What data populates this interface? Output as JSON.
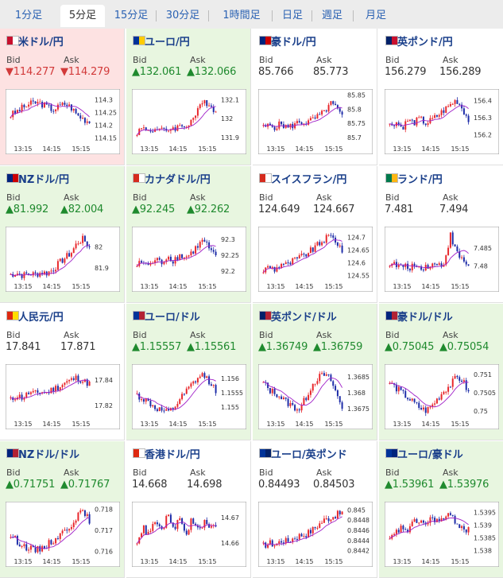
{
  "tabs": [
    {
      "label": "1分足",
      "active": false
    },
    {
      "label": "5分足",
      "active": true
    },
    {
      "label": "15分足",
      "active": false
    },
    {
      "label": "30分足",
      "active": false
    },
    {
      "label": "1時間足",
      "active": false
    },
    {
      "label": "日足",
      "active": false
    },
    {
      "label": "週足",
      "active": false
    },
    {
      "label": "月足",
      "active": false
    }
  ],
  "bid_label": "Bid",
  "ask_label": "Ask",
  "colors": {
    "up": "#1f8a2e",
    "down": "#d23a3a",
    "candle_up": "#e8262b",
    "candle_down": "#1d2ca8",
    "ma": "#a020c8"
  },
  "pairs": [
    {
      "name": "米ドル/円",
      "bid": "114.277",
      "ask": "114.279",
      "dir": "down",
      "bg": "down",
      "chart_data": {
        "type": "candlestick",
        "x_ticks": [
          "13:15",
          "14:15",
          "15:15"
        ],
        "y_ticks": [
          "114.3",
          "114.25",
          "114.2",
          "114.15"
        ],
        "ylim": [
          114.13,
          114.33
        ],
        "trend": [
          0.55,
          0.62,
          0.7,
          0.76,
          0.8,
          0.78,
          0.72,
          0.66,
          0.72,
          0.78,
          0.7,
          0.55,
          0.48,
          0.42
        ]
      }
    },
    {
      "name": "ユーロ/円",
      "bid": "132.061",
      "ask": "132.066",
      "dir": "up",
      "bg": "up",
      "chart_data": {
        "type": "candlestick",
        "x_ticks": [
          "13:15",
          "14:15",
          "15:15"
        ],
        "y_ticks": [
          "132.1",
          "132",
          "131.9"
        ],
        "ylim": [
          131.87,
          132.14
        ],
        "trend": [
          0.22,
          0.3,
          0.25,
          0.28,
          0.24,
          0.26,
          0.3,
          0.32,
          0.34,
          0.45,
          0.62,
          0.82,
          0.78,
          0.6
        ]
      }
    },
    {
      "name": "豪ドル/円",
      "bid": "85.766",
      "ask": "85.773",
      "dir": "none",
      "bg": "none",
      "chart_data": {
        "type": "candlestick",
        "x_ticks": [
          "13:15",
          "14:15",
          "15:15"
        ],
        "y_ticks": [
          "85.85",
          "85.8",
          "85.75",
          "85.7"
        ],
        "ylim": [
          85.68,
          85.86
        ],
        "trend": [
          0.3,
          0.35,
          0.32,
          0.38,
          0.3,
          0.36,
          0.42,
          0.4,
          0.45,
          0.52,
          0.6,
          0.78,
          0.7,
          0.5
        ]
      }
    },
    {
      "name": "英ポンド/円",
      "bid": "156.279",
      "ask": "156.289",
      "dir": "none",
      "bg": "none",
      "chart_data": {
        "type": "candlestick",
        "x_ticks": [
          "13:15",
          "14:15",
          "15:15"
        ],
        "y_ticks": [
          "156.4",
          "156.3",
          "156.2"
        ],
        "ylim": [
          156.15,
          156.45
        ],
        "trend": [
          0.35,
          0.42,
          0.3,
          0.45,
          0.4,
          0.48,
          0.38,
          0.46,
          0.55,
          0.65,
          0.75,
          0.85,
          0.68,
          0.45
        ]
      }
    },
    {
      "name": "NZドル/円",
      "bid": "81.992",
      "ask": "82.004",
      "dir": "up",
      "bg": "up",
      "chart_data": {
        "type": "candlestick",
        "x_ticks": [
          "13:15",
          "14:15",
          "15:15"
        ],
        "y_ticks": [
          "82",
          "81.9"
        ],
        "ylim": [
          81.84,
          82.08
        ],
        "trend": [
          0.12,
          0.15,
          0.1,
          0.14,
          0.12,
          0.16,
          0.15,
          0.22,
          0.35,
          0.45,
          0.55,
          0.75,
          0.82,
          0.65
        ]
      }
    },
    {
      "name": "カナダドル/円",
      "bid": "92.245",
      "ask": "92.262",
      "dir": "up",
      "bg": "up",
      "chart_data": {
        "type": "candlestick",
        "x_ticks": [
          "13:15",
          "14:15",
          "15:15"
        ],
        "y_ticks": [
          "92.3",
          "92.25",
          "92.2"
        ],
        "ylim": [
          92.17,
          92.33
        ],
        "trend": [
          0.3,
          0.38,
          0.28,
          0.42,
          0.35,
          0.48,
          0.4,
          0.5,
          0.45,
          0.55,
          0.68,
          0.8,
          0.6,
          0.45
        ]
      }
    },
    {
      "name": "スイスフラン/円",
      "bid": "124.649",
      "ask": "124.667",
      "dir": "none",
      "bg": "none",
      "chart_data": {
        "type": "candlestick",
        "x_ticks": [
          "13:15",
          "14:15",
          "15:15"
        ],
        "y_ticks": [
          "124.7",
          "124.65",
          "124.6",
          "124.55"
        ],
        "ylim": [
          124.53,
          124.73
        ],
        "trend": [
          0.2,
          0.28,
          0.22,
          0.35,
          0.3,
          0.4,
          0.45,
          0.52,
          0.6,
          0.7,
          0.8,
          0.88,
          0.78,
          0.6
        ]
      }
    },
    {
      "name": "ランド/円",
      "bid": "7.481",
      "ask": "7.494",
      "dir": "none",
      "bg": "none",
      "chart_data": {
        "type": "candlestick",
        "x_ticks": [
          "13:15",
          "14:15",
          "15:15"
        ],
        "y_ticks": [
          "7.485",
          "7.48"
        ],
        "ylim": [
          7.476,
          7.49
        ],
        "trend": [
          0.35,
          0.3,
          0.28,
          0.25,
          0.3,
          0.26,
          0.28,
          0.32,
          0.3,
          0.35,
          0.9,
          0.55,
          0.4,
          0.3
        ]
      }
    },
    {
      "name": "人民元/円",
      "bid": "17.841",
      "ask": "17.871",
      "dir": "none",
      "bg": "none",
      "chart_data": {
        "type": "candlestick",
        "x_ticks": [
          "13:15",
          "14:15",
          "15:15"
        ],
        "y_ticks": [
          "17.84",
          "17.82"
        ],
        "ylim": [
          17.81,
          17.85
        ],
        "trend": [
          0.35,
          0.45,
          0.4,
          0.5,
          0.48,
          0.52,
          0.5,
          0.58,
          0.62,
          0.7,
          0.75,
          0.8,
          0.72,
          0.68
        ]
      }
    },
    {
      "name": "ユーロ/ドル",
      "bid": "1.15557",
      "ask": "1.15561",
      "dir": "up",
      "bg": "up",
      "chart_data": {
        "type": "candlestick",
        "x_ticks": [
          "13:15",
          "14:15",
          "15:15"
        ],
        "y_ticks": [
          "1.156",
          "1.1555",
          "1.155"
        ],
        "ylim": [
          1.1546,
          1.1564
        ],
        "trend": [
          0.45,
          0.38,
          0.3,
          0.2,
          0.15,
          0.1,
          0.18,
          0.35,
          0.5,
          0.65,
          0.78,
          0.85,
          0.72,
          0.55
        ]
      }
    },
    {
      "name": "英ポンド/ドル",
      "bid": "1.36749",
      "ask": "1.36759",
      "dir": "up",
      "bg": "up",
      "chart_data": {
        "type": "candlestick",
        "x_ticks": [
          "13:15",
          "14:15",
          "15:15"
        ],
        "y_ticks": [
          "1.3685",
          "1.368",
          "1.3675"
        ],
        "ylim": [
          1.3672,
          1.3688
        ],
        "trend": [
          0.7,
          0.55,
          0.5,
          0.4,
          0.3,
          0.22,
          0.18,
          0.4,
          0.65,
          0.8,
          0.85,
          0.78,
          0.5,
          0.2
        ]
      }
    },
    {
      "name": "豪ドル/ドル",
      "bid": "0.75045",
      "ask": "0.75054",
      "dir": "up",
      "bg": "up",
      "chart_data": {
        "type": "candlestick",
        "x_ticks": [
          "13:15",
          "14:15",
          "15:15"
        ],
        "y_ticks": [
          "0.751",
          "0.7505",
          "0.75"
        ],
        "ylim": [
          0.7498,
          0.7512
        ],
        "trend": [
          0.7,
          0.6,
          0.5,
          0.4,
          0.3,
          0.2,
          0.15,
          0.25,
          0.4,
          0.55,
          0.65,
          0.8,
          0.75,
          0.5
        ]
      }
    },
    {
      "name": "NZドル/ドル",
      "bid": "0.71751",
      "ask": "0.71767",
      "dir": "up",
      "bg": "up",
      "chart_data": {
        "type": "candlestick",
        "x_ticks": [
          "13:15",
          "14:15",
          "15:15"
        ],
        "y_ticks": [
          "0.718",
          "0.717",
          "0.716"
        ],
        "ylim": [
          0.7158,
          0.7182
        ],
        "trend": [
          0.4,
          0.3,
          0.2,
          0.15,
          0.1,
          0.15,
          0.22,
          0.3,
          0.4,
          0.5,
          0.62,
          0.8,
          0.85,
          0.7
        ]
      }
    },
    {
      "name": "香港ドル/円",
      "bid": "14.668",
      "ask": "14.698",
      "dir": "none",
      "bg": "none",
      "chart_data": {
        "type": "candlestick",
        "x_ticks": [
          "13:15",
          "14:15",
          "15:15"
        ],
        "y_ticks": [
          "14.67",
          "14.66"
        ],
        "ylim": [
          14.655,
          14.675
        ],
        "trend": [
          0.3,
          0.55,
          0.4,
          0.7,
          0.45,
          0.8,
          0.5,
          0.75,
          0.4,
          0.7,
          0.5,
          0.65,
          0.55,
          0.6
        ]
      }
    },
    {
      "name": "ユーロ/英ポンド",
      "bid": "0.84493",
      "ask": "0.84503",
      "dir": "none",
      "bg": "none",
      "chart_data": {
        "type": "candlestick",
        "x_ticks": [
          "13:15",
          "14:15",
          "15:15"
        ],
        "y_ticks": [
          "0.845",
          "0.8448",
          "0.8446",
          "0.8444",
          "0.8442"
        ],
        "ylim": [
          0.8441,
          0.8451
        ],
        "trend": [
          0.2,
          0.25,
          0.22,
          0.3,
          0.28,
          0.35,
          0.4,
          0.42,
          0.5,
          0.6,
          0.7,
          0.75,
          0.8,
          0.85
        ]
      }
    },
    {
      "name": "ユーロ/豪ドル",
      "bid": "1.53961",
      "ask": "1.53976",
      "dir": "up",
      "bg": "up",
      "chart_data": {
        "type": "candlestick",
        "x_ticks": [
          "13:15",
          "14:15",
          "15:15"
        ],
        "y_ticks": [
          "1.5395",
          "1.539",
          "1.5385",
          "1.538"
        ],
        "ylim": [
          1.5378,
          1.5398
        ],
        "trend": [
          0.3,
          0.45,
          0.55,
          0.5,
          0.65,
          0.7,
          0.6,
          0.75,
          0.68,
          0.72,
          0.8,
          0.65,
          0.55,
          0.5
        ]
      }
    }
  ],
  "flags": [
    [
      "#c8102e",
      "#ffffff"
    ],
    [
      "#003399",
      "#ffcc00"
    ],
    [
      "#00247d",
      "#cc0000"
    ],
    [
      "#012169",
      "#c8102e"
    ],
    [
      "#00247d",
      "#cc0000"
    ],
    [
      "#d52b1e",
      "#ffffff"
    ],
    [
      "#d52b1e",
      "#ffffff"
    ],
    [
      "#007a4d",
      "#ffb612"
    ],
    [
      "#de2910",
      "#ffde00"
    ],
    [
      "#003399",
      "#b22234"
    ],
    [
      "#012169",
      "#b22234"
    ],
    [
      "#00247d",
      "#b22234"
    ],
    [
      "#00247d",
      "#b22234"
    ],
    [
      "#de2910",
      "#ffffff"
    ],
    [
      "#003399",
      "#012169"
    ],
    [
      "#003399",
      "#00247d"
    ]
  ]
}
